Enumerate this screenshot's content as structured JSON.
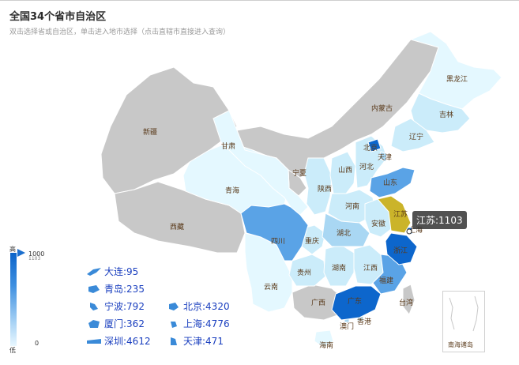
{
  "title": "全国34个省市自治区",
  "subtitle": "双击选择省或自治区，单击进入地市选择（点击直辖市直接进入查询）",
  "legend": {
    "high": "高",
    "low": "低",
    "max": "1000",
    "max_sub": "1103",
    "min": "0"
  },
  "tooltip": "江苏:1103",
  "nanhai_label": "南海诸岛",
  "colors": {
    "gray": "#c8c8c8",
    "pale": "#e4f8ff",
    "light": "#cbecfa",
    "mid": "#a9d7f3",
    "blue": "#5aa3e6",
    "dark": "#0d66cc",
    "highlight": "#cbb42a"
  },
  "provinces": {
    "heilongjiang": "黑龙江",
    "jilin": "吉林",
    "liaoning": "辽宁",
    "neimenggu": "内蒙古",
    "xinjiang": "新疆",
    "xizang": "西藏",
    "qinghai": "青海",
    "gansu": "甘肃",
    "ningxia": "宁夏",
    "shaanxi": "陕西",
    "shanxi": "山西",
    "hebei": "河北",
    "beijing": "北京",
    "tianjin": "天津",
    "shandong": "山东",
    "henan": "河南",
    "jiangsu": "江苏",
    "anhui": "安徽",
    "shanghai": "上海",
    "zhejiang": "浙江",
    "hubei": "湖北",
    "sichuan": "四川",
    "chongqing": "重庆",
    "guizhou": "贵州",
    "hunan": "湖南",
    "jiangxi": "江西",
    "fujian": "福建",
    "yunnan": "云南",
    "guangxi": "广西",
    "guangdong": "广东",
    "taiwan": "台湾",
    "xianggang": "香港",
    "aomen": "澳门",
    "hainan": "海南"
  },
  "cities": [
    {
      "label": "大连:95"
    },
    {
      "label": "青岛:235"
    },
    {
      "label": "宁波:792"
    },
    {
      "label": "北京:4320"
    },
    {
      "label": "厦门:362"
    },
    {
      "label": "上海:4776"
    },
    {
      "label": "深圳:4612"
    },
    {
      "label": "天津:471"
    }
  ]
}
